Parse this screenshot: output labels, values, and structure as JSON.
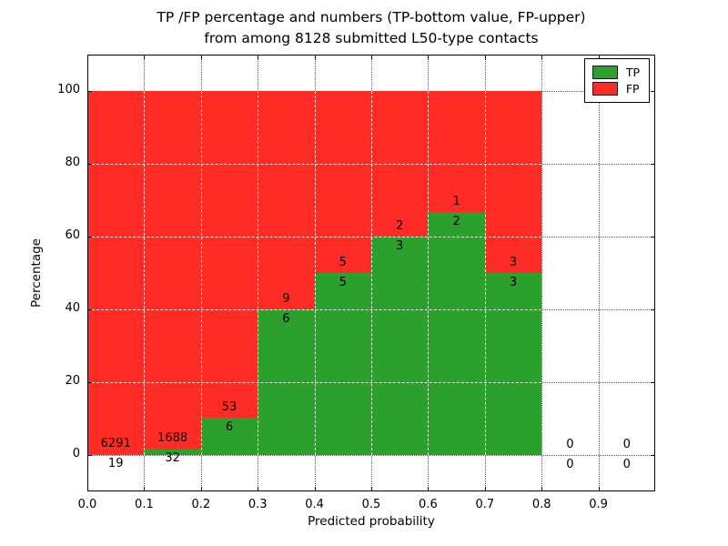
{
  "chart_data": {
    "type": "bar",
    "stacked": true,
    "title_line1": "TP /FP percentage and numbers (TP-bottom value, FP-upper)",
    "title_line2": "from among 8128 submitted L50-type contacts",
    "total_submitted": 8128,
    "xlabel": "Predicted probability",
    "ylabel": "Percentage",
    "xlim": [
      0.0,
      1.0
    ],
    "ylim": [
      -10,
      110
    ],
    "xticks": [
      "0.0",
      "0.1",
      "0.2",
      "0.3",
      "0.4",
      "0.5",
      "0.6",
      "0.7",
      "0.8",
      "0.9"
    ],
    "yticks": [
      0,
      20,
      40,
      60,
      80,
      100
    ],
    "grid": true,
    "colors": {
      "tp": "#2ca02c",
      "fp": "#ff2b24"
    },
    "legend": {
      "position": "upper right",
      "entries": [
        {
          "key": "tp",
          "label": "TP"
        },
        {
          "key": "fp",
          "label": "FP"
        }
      ]
    },
    "bins": [
      {
        "range": [
          0.0,
          0.1
        ],
        "tp": 19,
        "fp": 6291,
        "tp_pct": 0.3
      },
      {
        "range": [
          0.1,
          0.2
        ],
        "tp": 32,
        "fp": 1688,
        "tp_pct": 1.86
      },
      {
        "range": [
          0.2,
          0.3
        ],
        "tp": 6,
        "fp": 53,
        "tp_pct": 10.17
      },
      {
        "range": [
          0.3,
          0.4
        ],
        "tp": 6,
        "fp": 9,
        "tp_pct": 40.0
      },
      {
        "range": [
          0.4,
          0.5
        ],
        "tp": 5,
        "fp": 5,
        "tp_pct": 50.0
      },
      {
        "range": [
          0.5,
          0.6
        ],
        "tp": 3,
        "fp": 2,
        "tp_pct": 60.0
      },
      {
        "range": [
          0.6,
          0.7
        ],
        "tp": 2,
        "fp": 1,
        "tp_pct": 66.67
      },
      {
        "range": [
          0.7,
          0.8
        ],
        "tp": 3,
        "fp": 3,
        "tp_pct": 50.0
      },
      {
        "range": [
          0.8,
          0.9
        ],
        "tp": 0,
        "fp": 0,
        "tp_pct": null
      },
      {
        "range": [
          0.9,
          1.0
        ],
        "tp": 0,
        "fp": 0,
        "tp_pct": null
      }
    ]
  }
}
